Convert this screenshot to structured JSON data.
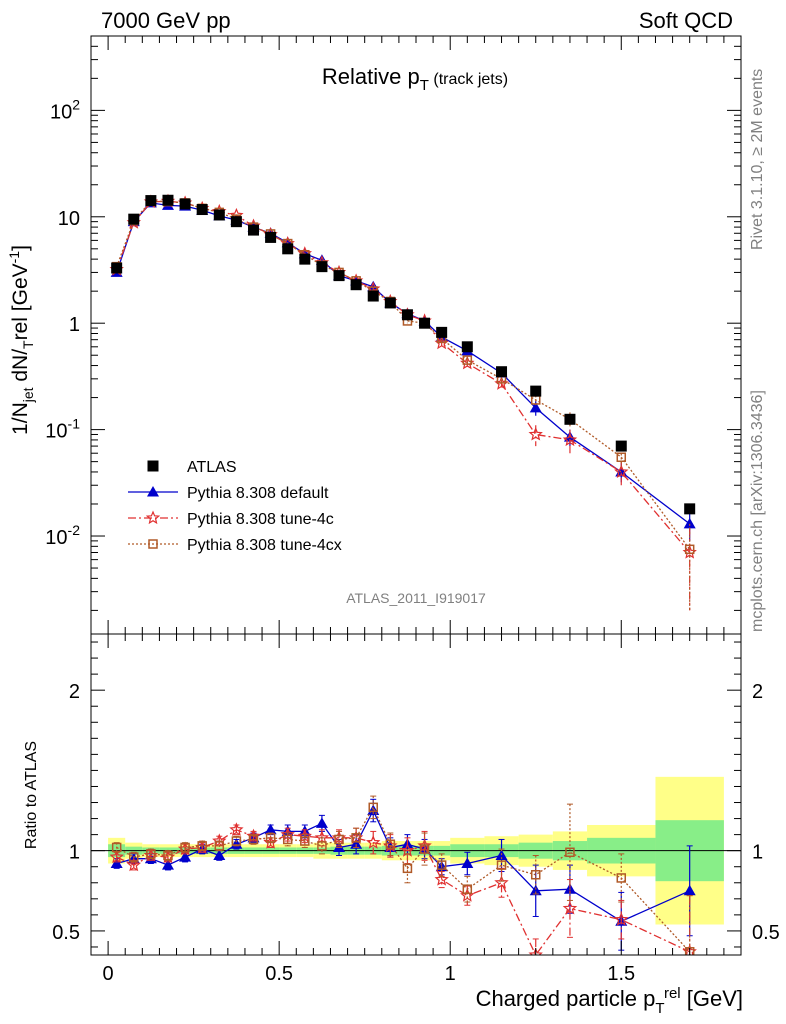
{
  "header": {
    "left": "7000 GeV pp",
    "right": "Soft QCD",
    "rivet": "Rivet 3.1.10, ≥ 2M events",
    "mcplots": "mcplots.cern.ch [arXiv:1306.3436]",
    "analysis": "ATLAS_2011_I919017"
  },
  "chart_data": {
    "type": "scatter",
    "title": "Relative p_T (track jets)",
    "xlabel": "Charged particle p_T^rel [GeV]",
    "ylabel": "1/N_jet dN/dp_T^rel [GeV^-1]",
    "ratio_ylabel": "Ratio to ATLAS",
    "xlim": [
      -0.05,
      1.85
    ],
    "ylim": [
      0.0012,
      500
    ],
    "yscale": "log",
    "ratio_ylim": [
      0.35,
      2.35
    ],
    "legend_position": "lower-left",
    "x_ticks": [
      "0",
      "0.5",
      "1",
      "1.5"
    ],
    "y_ticks": [
      "10^-2",
      "10^-1",
      "1",
      "10",
      "10^2"
    ],
    "ratio_ticks": [
      "0.5",
      "1",
      "2"
    ],
    "x": [
      0.025,
      0.075,
      0.125,
      0.175,
      0.225,
      0.275,
      0.325,
      0.375,
      0.425,
      0.475,
      0.525,
      0.575,
      0.625,
      0.675,
      0.725,
      0.775,
      0.825,
      0.875,
      0.925,
      0.975,
      1.05,
      1.15,
      1.25,
      1.35,
      1.5,
      1.7
    ],
    "series": [
      {
        "name": "ATLAS",
        "marker": "square",
        "color": "#000000",
        "linestyle": "none",
        "values": [
          3.3,
          9.5,
          14.2,
          14.3,
          13.2,
          11.7,
          10.4,
          9.0,
          7.5,
          6.4,
          5.0,
          4.0,
          3.4,
          2.8,
          2.3,
          1.8,
          1.55,
          1.2,
          1.0,
          0.82,
          0.6,
          0.35,
          0.23,
          0.125,
          0.07,
          0.018
        ]
      },
      {
        "name": "Pythia 8.308 default",
        "marker": "triangle",
        "color": "#0000cc",
        "linestyle": "solid",
        "values": [
          3.0,
          9.0,
          13.5,
          12.8,
          12.6,
          11.5,
          10.2,
          9.3,
          8.0,
          7.0,
          5.7,
          4.5,
          3.9,
          2.8,
          2.5,
          2.2,
          1.55,
          1.23,
          1.05,
          0.74,
          0.55,
          0.34,
          0.16,
          0.085,
          0.04,
          0.013
        ],
        "errors": [
          0.1,
          0.2,
          0.3,
          0.3,
          0.3,
          0.3,
          0.2,
          0.2,
          0.2,
          0.2,
          0.15,
          0.12,
          0.1,
          0.08,
          0.08,
          0.08,
          0.05,
          0.04,
          0.04,
          0.03,
          0.025,
          0.02,
          0.025,
          0.015,
          0.008,
          0.004
        ],
        "ratio": [
          0.92,
          0.95,
          0.95,
          0.91,
          0.96,
          1.01,
          0.97,
          1.04,
          1.08,
          1.13,
          1.12,
          1.12,
          1.17,
          1.02,
          1.04,
          1.25,
          1.02,
          1.04,
          1.01,
          0.9,
          0.92,
          0.97,
          0.75,
          0.76,
          0.56,
          0.75
        ],
        "ratio_err": [
          0.03,
          0.03,
          0.03,
          0.03,
          0.03,
          0.03,
          0.03,
          0.03,
          0.03,
          0.03,
          0.04,
          0.04,
          0.05,
          0.05,
          0.06,
          0.07,
          0.06,
          0.06,
          0.06,
          0.05,
          0.07,
          0.1,
          0.16,
          0.15,
          0.18,
          0.28
        ]
      },
      {
        "name": "Pythia 8.308 tune-4c",
        "marker": "star",
        "color": "#e03030",
        "linestyle": "dashdot",
        "values": [
          3.2,
          8.8,
          13.8,
          14.0,
          13.5,
          12.0,
          11.2,
          10.3,
          8.2,
          6.8,
          5.6,
          4.5,
          3.7,
          3.0,
          2.5,
          2.1,
          1.6,
          1.2,
          1.05,
          0.65,
          0.42,
          0.27,
          0.09,
          0.08,
          0.04,
          0.007
        ],
        "errors": [
          0.1,
          0.2,
          0.3,
          0.3,
          0.3,
          0.3,
          0.3,
          0.2,
          0.2,
          0.2,
          0.15,
          0.12,
          0.1,
          0.1,
          0.08,
          0.08,
          0.06,
          0.05,
          0.04,
          0.04,
          0.03,
          0.02,
          0.02,
          0.02,
          0.01,
          0.005
        ],
        "ratio": [
          0.96,
          0.91,
          0.97,
          0.96,
          1.01,
          1.02,
          1.06,
          1.13,
          1.09,
          1.05,
          1.1,
          1.09,
          1.08,
          1.08,
          1.08,
          1.05,
          1.03,
          1.0,
          1.03,
          0.82,
          0.72,
          0.8,
          0.35,
          0.64,
          0.57,
          0.37
        ],
        "ratio_err": [
          0.03,
          0.03,
          0.03,
          0.03,
          0.03,
          0.03,
          0.03,
          0.03,
          0.03,
          0.03,
          0.04,
          0.04,
          0.05,
          0.05,
          0.06,
          0.07,
          0.07,
          0.08,
          0.09,
          0.05,
          0.06,
          0.09,
          0.1,
          0.18,
          0.12,
          0.35
        ]
      },
      {
        "name": "Pythia 8.308 tune-4cx",
        "marker": "open-square",
        "color": "#b05a28",
        "linestyle": "dotted",
        "values": [
          3.4,
          9.2,
          14.0,
          13.9,
          13.5,
          12.0,
          11.0,
          9.5,
          8.0,
          6.9,
          5.6,
          4.4,
          3.5,
          3.0,
          2.5,
          2.0,
          1.6,
          1.05,
          1.0,
          0.72,
          0.45,
          0.3,
          0.19,
          0.125,
          0.055,
          0.0075
        ],
        "errors": [
          0.1,
          0.2,
          0.3,
          0.3,
          0.3,
          0.3,
          0.3,
          0.2,
          0.2,
          0.2,
          0.15,
          0.12,
          0.1,
          0.1,
          0.08,
          0.08,
          0.06,
          0.05,
          0.04,
          0.04,
          0.03,
          0.02,
          0.02,
          0.02,
          0.01,
          0.0055
        ],
        "ratio": [
          1.02,
          0.96,
          0.98,
          0.97,
          1.02,
          1.03,
          1.03,
          1.06,
          1.07,
          1.08,
          1.07,
          1.06,
          1.03,
          1.07,
          1.08,
          1.27,
          1.04,
          0.89,
          1.01,
          0.91,
          0.76,
          0.91,
          0.85,
          0.99,
          0.83,
          0.37
        ],
        "ratio_err": [
          0.03,
          0.03,
          0.03,
          0.03,
          0.03,
          0.03,
          0.03,
          0.03,
          0.03,
          0.03,
          0.04,
          0.04,
          0.05,
          0.05,
          0.06,
          0.07,
          0.07,
          0.09,
          0.1,
          0.07,
          0.08,
          0.1,
          0.12,
          0.3,
          0.15,
          0.35
        ]
      }
    ],
    "ratio_bands": {
      "edges": [
        0,
        0.05,
        0.1,
        0.15,
        0.2,
        0.25,
        0.3,
        0.35,
        0.4,
        0.45,
        0.5,
        0.55,
        0.6,
        0.65,
        0.7,
        0.75,
        0.8,
        0.85,
        0.9,
        0.95,
        1.0,
        1.1,
        1.2,
        1.3,
        1.4,
        1.6,
        1.8
      ],
      "stat": [
        0.04,
        0.025,
        0.02,
        0.02,
        0.02,
        0.02,
        0.02,
        0.02,
        0.02,
        0.02,
        0.02,
        0.02,
        0.02,
        0.025,
        0.025,
        0.025,
        0.03,
        0.03,
        0.03,
        0.03,
        0.04,
        0.04,
        0.05,
        0.06,
        0.08,
        0.19
      ],
      "total": [
        0.08,
        0.05,
        0.04,
        0.04,
        0.04,
        0.04,
        0.04,
        0.04,
        0.04,
        0.04,
        0.04,
        0.04,
        0.05,
        0.05,
        0.05,
        0.05,
        0.06,
        0.06,
        0.06,
        0.06,
        0.08,
        0.09,
        0.1,
        0.12,
        0.16,
        0.46
      ]
    }
  }
}
